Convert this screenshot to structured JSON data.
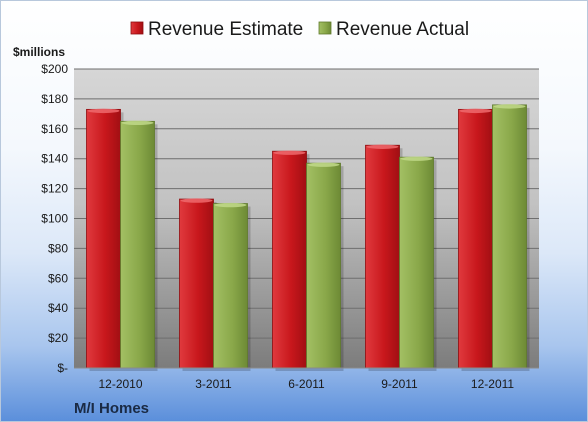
{
  "chart_data": {
    "type": "bar",
    "title": "",
    "unit_label": "$millions",
    "footer_label": "M/I Homes",
    "categories": [
      "12-2010",
      "3-2011",
      "6-2011",
      "9-2011",
      "12-2011"
    ],
    "series": [
      {
        "name": "Revenue Estimate",
        "values": [
          173,
          113,
          145,
          149,
          173
        ],
        "color": "#c8171c"
      },
      {
        "name": "Revenue Actual",
        "values": [
          165,
          110,
          137,
          141,
          176
        ],
        "color": "#8aa84a"
      }
    ],
    "ylim": [
      0,
      200
    ],
    "yticks": [
      0,
      20,
      40,
      60,
      80,
      100,
      120,
      140,
      160,
      180,
      200
    ],
    "ytick_labels": [
      "$-",
      "$20",
      "$40",
      "$60",
      "$80",
      "$100",
      "$120",
      "$140",
      "$160",
      "$180",
      "$200"
    ],
    "grid": true,
    "legend_position": "top"
  }
}
